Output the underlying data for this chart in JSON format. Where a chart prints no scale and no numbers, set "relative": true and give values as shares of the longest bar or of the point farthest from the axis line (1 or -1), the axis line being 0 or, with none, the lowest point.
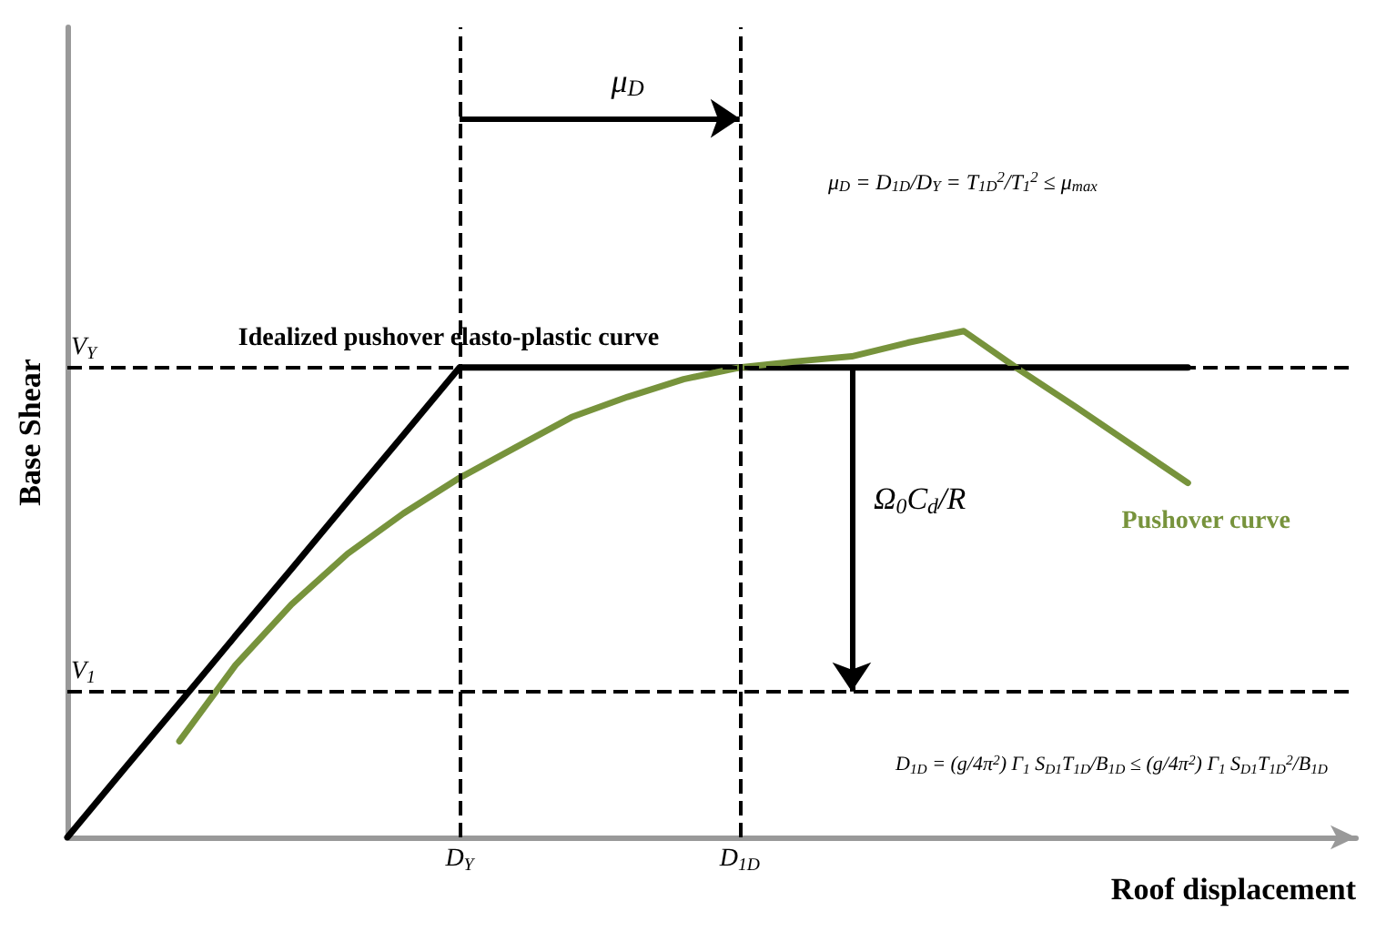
{
  "chart_data": {
    "type": "line",
    "relative": true,
    "xlabel": "Roof displacement",
    "ylabel": "Base Shear",
    "categories": [
      null,
      null,
      null,
      null,
      null,
      null,
      null,
      "D$_{Y}$",
      null,
      null,
      null,
      null,
      "D$_{1D}$",
      null,
      null,
      null,
      null,
      null,
      null,
      null,
      null,
      null,
      null,
      null
    ],
    "series": [
      {
        "name": "Idealized pushover elasto-plastic curve",
        "color": "#000000",
        "values": [
          0,
          0.133,
          0.265,
          0.398,
          0.53,
          0.663,
          0.795,
          0.928,
          0.928,
          0.928,
          0.928,
          0.928,
          0.928,
          0.928,
          0.928,
          0.928,
          0.928,
          0.928,
          0.928,
          0.928,
          0.928,
          null,
          null,
          null
        ]
      },
      {
        "name": "Pushover curve",
        "color": "#77933c",
        "values": [
          null,
          null,
          0.19,
          0.34,
          0.46,
          0.56,
          0.64,
          0.71,
          0.77,
          0.83,
          0.87,
          0.905,
          0.928,
          0.94,
          0.95,
          0.977,
          1,
          0.923,
          0.85,
          0.775,
          0.7,
          null,
          null,
          null
        ]
      }
    ],
    "ref_lines": [
      {
        "axis": "y",
        "value": 0.928,
        "label": "V$_{Y}$",
        "line_style": "dashed"
      },
      {
        "axis": "y",
        "value": 0.288,
        "label": "V$_{1}$",
        "line_style": "dashed"
      },
      {
        "axis": "x",
        "value": "D$_{Y}$",
        "line_style": "dashed"
      },
      {
        "axis": "x",
        "value": "D$_{1D}$",
        "line_style": "dashed"
      }
    ],
    "annotations": [
      "μ$_{D}$",
      "μ$_{D}$ = D$_{1D}$/D$_{Y}$ = T$_{1D}$$^{2}$/T$_{1}$$^{2}$ ≤ μ$_{max}$",
      "Ω$_{0}$C$_{d}$/R",
      "D$_{1D}$ = (g/4π$^{2}$) Γ$_{1}$ S$_{D1}$T$_{1D}$/B$_{1D}$ ≤ (g/4π$^{2}$) Γ$_{1}$ S$_{D1}$T$_{1D}$$^{2}$/B$_{1D}$"
    ],
    "grid": false,
    "legend": false,
    "marker": "none",
    "line_style": "solid"
  }
}
